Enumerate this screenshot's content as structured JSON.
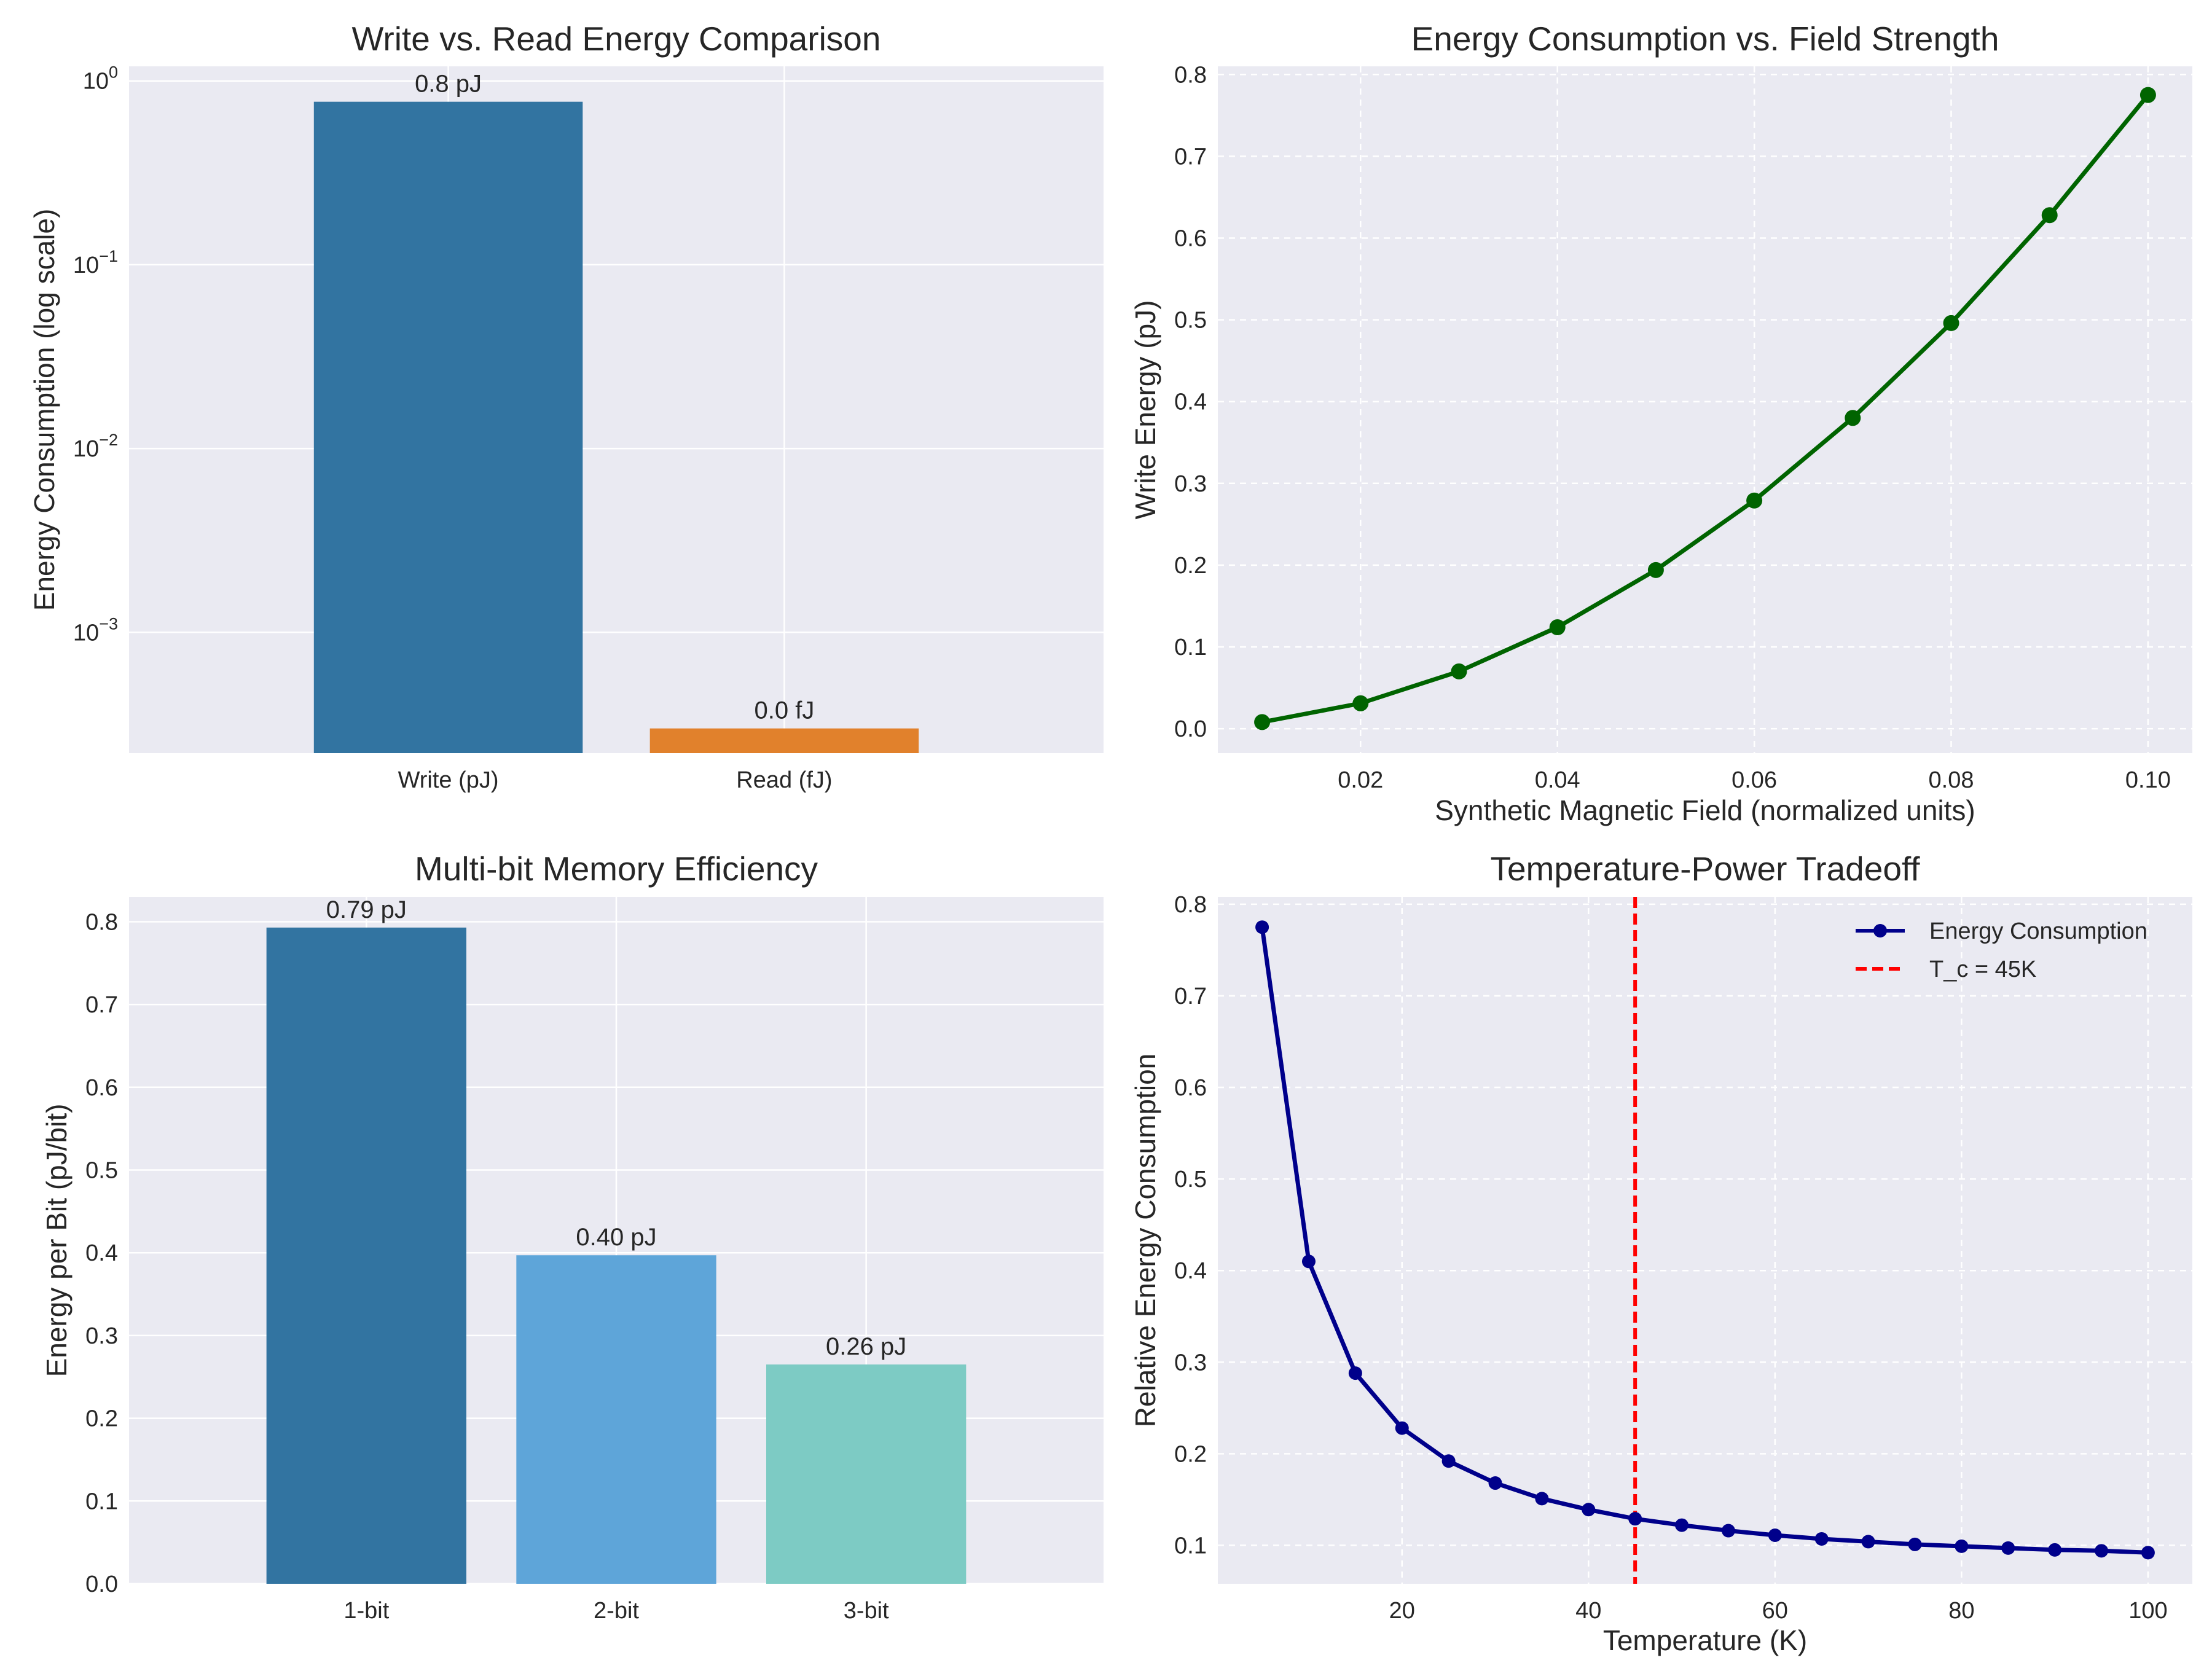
{
  "chart_data": [
    {
      "id": "write-read",
      "type": "bar",
      "title": "Write vs. Read Energy Comparison",
      "xlabel": "",
      "ylabel": "Energy Consumption (log scale)",
      "yscale": "log",
      "ylim": [
        0.00022,
        1.2
      ],
      "yticks": [
        {
          "value": 1,
          "base": "10",
          "exp": "0"
        },
        {
          "value": 0.1,
          "base": "10",
          "exp": "−1"
        },
        {
          "value": 0.01,
          "base": "10",
          "exp": "−2"
        },
        {
          "value": 0.001,
          "base": "10",
          "exp": "−3"
        }
      ],
      "categories": [
        "Write (pJ)",
        "Read (fJ)"
      ],
      "values": [
        0.77,
        0.0003
      ],
      "data_labels": [
        "0.8 pJ",
        "0.0 fJ"
      ],
      "colors": [
        "#3274a1",
        "#e1812c"
      ],
      "grid": true
    },
    {
      "id": "field-strength",
      "type": "line",
      "title": "Energy Consumption vs. Field Strength",
      "xlabel": "Synthetic Magnetic Field (normalized units)",
      "ylabel": "Write Energy (pJ)",
      "xlim": [
        0.0055,
        0.1045
      ],
      "ylim": [
        -0.03,
        0.81
      ],
      "xticks": [
        0.02,
        0.04,
        0.06,
        0.08,
        0.1
      ],
      "xtick_labels": [
        "0.02",
        "0.04",
        "0.06",
        "0.08",
        "0.10"
      ],
      "yticks": [
        0.0,
        0.1,
        0.2,
        0.3,
        0.4,
        0.5,
        0.6,
        0.7,
        0.8
      ],
      "ytick_labels": [
        "0.0",
        "0.1",
        "0.2",
        "0.3",
        "0.4",
        "0.5",
        "0.6",
        "0.7",
        "0.8"
      ],
      "x": [
        0.01,
        0.02,
        0.03,
        0.04,
        0.05,
        0.06,
        0.07,
        0.08,
        0.09,
        0.1
      ],
      "y": [
        0.008,
        0.031,
        0.07,
        0.124,
        0.194,
        0.279,
        0.38,
        0.496,
        0.628,
        0.775
      ],
      "color": "#006400",
      "grid": true
    },
    {
      "id": "multibit",
      "type": "bar",
      "title": "Multi-bit Memory Efficiency",
      "xlabel": "",
      "ylabel": "Energy per Bit (pJ/bit)",
      "ylim": [
        0,
        0.83
      ],
      "yticks": [
        0.0,
        0.1,
        0.2,
        0.3,
        0.4,
        0.5,
        0.6,
        0.7,
        0.8
      ],
      "ytick_labels": [
        "0.0",
        "0.1",
        "0.2",
        "0.3",
        "0.4",
        "0.5",
        "0.6",
        "0.7",
        "0.8"
      ],
      "categories": [
        "1-bit",
        "2-bit",
        "3-bit"
      ],
      "values": [
        0.793,
        0.397,
        0.265
      ],
      "data_labels": [
        "0.79 pJ",
        "0.40 pJ",
        "0.26 pJ"
      ],
      "colors": [
        "#3274a1",
        "#5ea5d9",
        "#7dcbc4"
      ],
      "grid": true
    },
    {
      "id": "temperature",
      "type": "line",
      "title": "Temperature-Power Tradeoff",
      "xlabel": "Temperature (K)",
      "ylabel": "Relative Energy Consumption",
      "xlim": [
        0.25,
        104.75
      ],
      "ylim": [
        0.058,
        0.808
      ],
      "xticks": [
        20,
        40,
        60,
        80,
        100
      ],
      "xtick_labels": [
        "20",
        "40",
        "60",
        "80",
        "100"
      ],
      "yticks": [
        0.1,
        0.2,
        0.3,
        0.4,
        0.5,
        0.6,
        0.7,
        0.8
      ],
      "ytick_labels": [
        "0.1",
        "0.2",
        "0.3",
        "0.4",
        "0.5",
        "0.6",
        "0.7",
        "0.8"
      ],
      "x": [
        5,
        10,
        15,
        20,
        25,
        30,
        35,
        40,
        45,
        50,
        55,
        60,
        65,
        70,
        75,
        80,
        85,
        90,
        95,
        100
      ],
      "y": [
        0.775,
        0.41,
        0.288,
        0.228,
        0.192,
        0.168,
        0.151,
        0.139,
        0.129,
        0.122,
        0.116,
        0.111,
        0.107,
        0.104,
        0.101,
        0.099,
        0.097,
        0.095,
        0.094,
        0.092
      ],
      "color": "#00008b",
      "reference_line": {
        "x": 45,
        "color": "#ff0000"
      },
      "legend": {
        "position": "top-right",
        "entries": [
          "Energy Consumption",
          "T_c = 45K"
        ]
      },
      "grid": true
    }
  ]
}
